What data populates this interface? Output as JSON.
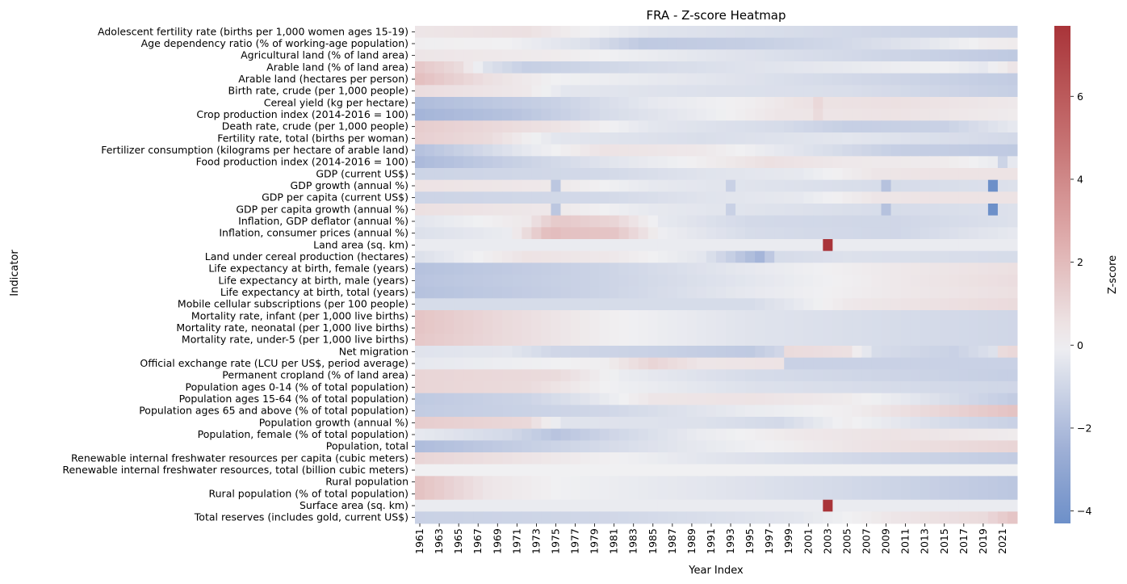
{
  "chart_data": {
    "type": "heatmap",
    "title": "FRA - Z-score Heatmap",
    "xlabel": "Year Index",
    "ylabel": "Indicator",
    "colorbar_label": "Z-score",
    "colormap": "vlag",
    "color_range": [
      -4.3,
      7.7
    ],
    "colorbar_ticks": [
      -4,
      -2,
      0,
      2,
      4,
      6
    ],
    "colorbar_tick_labels": [
      "−4",
      "−2",
      "0",
      "2",
      "4",
      "6"
    ],
    "x_start": 1961,
    "x_end": 2022,
    "xtick_labels": [
      "1961",
      "1963",
      "1965",
      "1967",
      "1969",
      "1971",
      "1973",
      "1975",
      "1977",
      "1979",
      "1981",
      "1983",
      "1985",
      "1987",
      "1989",
      "1991",
      "1993",
      "1995",
      "1997",
      "1999",
      "2001",
      "2003",
      "2005",
      "2007",
      "2009",
      "2011",
      "2013",
      "2015",
      "2017",
      "2019",
      "2021"
    ],
    "indicators": [
      "Adolescent fertility rate (births per 1,000 women ages 15-19)",
      "Age dependency ratio (% of working-age population)",
      "Agricultural land (% of land area)",
      "Arable land (% of land area)",
      "Arable land (hectares per person)",
      "Birth rate, crude (per 1,000 people)",
      "Cereal yield (kg per hectare)",
      "Crop production index (2014-2016 = 100)",
      "Death rate, crude (per 1,000 people)",
      "Fertility rate, total (births per woman)",
      "Fertilizer consumption (kilograms per hectare of arable land)",
      "Food production index (2014-2016 = 100)",
      "GDP (current US$)",
      "GDP growth (annual %)",
      "GDP per capita (current US$)",
      "GDP per capita growth (annual %)",
      "Inflation, GDP deflator (annual %)",
      "Inflation, consumer prices (annual %)",
      "Land area (sq. km)",
      "Land under cereal production (hectares)",
      "Life expectancy at birth, female (years)",
      "Life expectancy at birth, male (years)",
      "Life expectancy at birth, total (years)",
      "Mobile cellular subscriptions (per 100 people)",
      "Mortality rate, infant (per 1,000 live births)",
      "Mortality rate, neonatal (per 1,000 live births)",
      "Mortality rate, under-5 (per 1,000 live births)",
      "Net migration",
      "Official exchange rate (LCU per US$, period average)",
      "Permanent cropland (% of land area)",
      "Population ages 0-14 (% of total population)",
      "Population ages 15-64 (% of total population)",
      "Population ages 65 and above (% of total population)",
      "Population growth (annual %)",
      "Population, female (% of total population)",
      "Population, total",
      "Renewable internal freshwater resources per capita (cubic meters)",
      "Renewable internal freshwater resources, total (billion cubic meters)",
      "Rural population",
      "Rural population (% of total population)",
      "Surface area (sq. km)",
      "Total reserves (includes gold, current US$)"
    ],
    "anchors": [
      [
        [
          1961,
          0.4
        ],
        [
          1972,
          0.6
        ],
        [
          1976,
          0.2
        ],
        [
          1985,
          -0.5
        ],
        [
          2000,
          -0.8
        ],
        [
          2022,
          -1.3
        ]
      ],
      [
        [
          1961,
          0.1
        ],
        [
          1970,
          0.0
        ],
        [
          1978,
          -0.6
        ],
        [
          1984,
          -1.5
        ],
        [
          1995,
          -1.3
        ],
        [
          2005,
          -0.9
        ],
        [
          2013,
          -0.4
        ],
        [
          2019,
          0.1
        ],
        [
          2022,
          0.2
        ]
      ],
      [
        [
          1961,
          0.4
        ],
        [
          1975,
          0.2
        ],
        [
          1990,
          -0.4
        ],
        [
          2005,
          -0.9
        ],
        [
          2022,
          -1.5
        ]
      ],
      [
        [
          1961,
          1.5
        ],
        [
          1965,
          0.8
        ],
        [
          1968,
          -0.6
        ],
        [
          1972,
          -1.3
        ],
        [
          1985,
          -0.8
        ],
        [
          2000,
          -0.4
        ],
        [
          2015,
          0.0
        ],
        [
          2019,
          -0.3
        ],
        [
          2022,
          0.4
        ]
      ],
      [
        [
          1961,
          1.8
        ],
        [
          1968,
          0.6
        ],
        [
          1975,
          0.0
        ],
        [
          1990,
          -0.4
        ],
        [
          2005,
          -0.9
        ],
        [
          2022,
          -1.4
        ]
      ],
      [
        [
          1961,
          0.7
        ],
        [
          1972,
          0.3
        ],
        [
          1976,
          -0.4
        ],
        [
          1990,
          -0.6
        ],
        [
          2005,
          -0.7
        ],
        [
          2022,
          -1.3
        ]
      ],
      [
        [
          1961,
          -2.0
        ],
        [
          1975,
          -1.2
        ],
        [
          1985,
          -0.3
        ],
        [
          1995,
          0.1
        ],
        [
          2000,
          0.5
        ],
        [
          2010,
          0.6
        ],
        [
          2022,
          0.3
        ]
      ],
      [
        [
          1961,
          -2.3
        ],
        [
          1970,
          -1.8
        ],
        [
          1980,
          -0.8
        ],
        [
          1990,
          -0.2
        ],
        [
          1998,
          0.4
        ],
        [
          2010,
          0.5
        ],
        [
          2022,
          0.2
        ]
      ],
      [
        [
          1961,
          1.3
        ],
        [
          1975,
          0.5
        ],
        [
          1985,
          -0.4
        ],
        [
          1998,
          -0.8
        ],
        [
          2005,
          -1.3
        ],
        [
          2015,
          -1.2
        ],
        [
          2022,
          -0.3
        ]
      ],
      [
        [
          1961,
          1.2
        ],
        [
          1968,
          0.8
        ],
        [
          1975,
          -0.4
        ],
        [
          1990,
          -0.7
        ],
        [
          2005,
          -0.4
        ],
        [
          2022,
          -0.9
        ]
      ],
      [
        [
          1961,
          -1.8
        ],
        [
          1967,
          -1.0
        ],
        [
          1972,
          -0.3
        ],
        [
          1980,
          0.5
        ],
        [
          1990,
          0.3
        ],
        [
          1998,
          -0.3
        ],
        [
          2010,
          -1.3
        ],
        [
          2022,
          -1.5
        ]
      ],
      [
        [
          1961,
          -2.1
        ],
        [
          1970,
          -1.3
        ],
        [
          1980,
          -0.5
        ],
        [
          1990,
          0.1
        ],
        [
          1997,
          0.6
        ],
        [
          2005,
          0.3
        ],
        [
          2015,
          0.2
        ],
        [
          2022,
          -0.3
        ]
      ],
      [
        [
          1961,
          -1.1
        ],
        [
          1980,
          -0.9
        ],
        [
          1990,
          -0.5
        ],
        [
          2000,
          -0.3
        ],
        [
          2008,
          0.4
        ],
        [
          2015,
          0.5
        ],
        [
          2022,
          0.5
        ]
      ],
      [
        [
          1961,
          0.5
        ],
        [
          1975,
          0.3
        ],
        [
          1985,
          -0.3
        ],
        [
          2000,
          -0.6
        ],
        [
          2010,
          -0.8
        ],
        [
          2022,
          -0.6
        ]
      ],
      [
        [
          1961,
          -1.1
        ],
        [
          1980,
          -0.9
        ],
        [
          1990,
          -0.5
        ],
        [
          2000,
          -0.3
        ],
        [
          2008,
          0.4
        ],
        [
          2015,
          0.5
        ],
        [
          2022,
          0.5
        ]
      ],
      [
        [
          1961,
          0.6
        ],
        [
          1975,
          0.3
        ],
        [
          1985,
          -0.3
        ],
        [
          2000,
          -0.6
        ],
        [
          2010,
          -0.8
        ],
        [
          2022,
          -0.6
        ]
      ],
      [
        [
          1961,
          -0.4
        ],
        [
          1972,
          0.3
        ],
        [
          1975,
          1.5
        ],
        [
          1981,
          1.0
        ],
        [
          1986,
          -0.3
        ],
        [
          1995,
          -0.9
        ],
        [
          2010,
          -1.0
        ],
        [
          2022,
          -0.6
        ]
      ],
      [
        [
          1961,
          -0.6
        ],
        [
          1970,
          -0.2
        ],
        [
          1974,
          1.8
        ],
        [
          1981,
          1.6
        ],
        [
          1986,
          -0.1
        ],
        [
          1995,
          -0.8
        ],
        [
          2010,
          -1.0
        ],
        [
          2022,
          -0.3
        ]
      ],
      [
        [
          1961,
          -0.2
        ],
        [
          2022,
          -0.2
        ]
      ],
      [
        [
          1961,
          -0.6
        ],
        [
          1972,
          0.5
        ],
        [
          1981,
          0.3
        ],
        [
          1990,
          -0.4
        ],
        [
          1993,
          -1.3
        ],
        [
          1996,
          -2.3
        ],
        [
          1998,
          -0.8
        ],
        [
          2005,
          -0.6
        ],
        [
          2022,
          -0.8
        ]
      ],
      [
        [
          1961,
          -1.8
        ],
        [
          1980,
          -1.1
        ],
        [
          1995,
          -0.3
        ],
        [
          2010,
          0.3
        ],
        [
          2022,
          0.6
        ]
      ],
      [
        [
          1961,
          -1.7
        ],
        [
          1980,
          -1.1
        ],
        [
          1995,
          -0.4
        ],
        [
          2010,
          0.3
        ],
        [
          2022,
          0.7
        ]
      ],
      [
        [
          1961,
          -1.8
        ],
        [
          1980,
          -1.1
        ],
        [
          1995,
          -0.3
        ],
        [
          2010,
          0.3
        ],
        [
          2022,
          0.6
        ]
      ],
      [
        [
          1961,
          -0.8
        ],
        [
          1995,
          -0.8
        ],
        [
          1999,
          -0.4
        ],
        [
          2005,
          0.3
        ],
        [
          2012,
          0.5
        ],
        [
          2022,
          0.8
        ]
      ],
      [
        [
          1961,
          1.6
        ],
        [
          1970,
          0.8
        ],
        [
          1980,
          0.1
        ],
        [
          1995,
          -0.5
        ],
        [
          2010,
          -0.8
        ],
        [
          2022,
          -1.0
        ]
      ],
      [
        [
          1961,
          1.6
        ],
        [
          1970,
          0.8
        ],
        [
          1980,
          0.1
        ],
        [
          1995,
          -0.5
        ],
        [
          2010,
          -0.8
        ],
        [
          2022,
          -1.0
        ]
      ],
      [
        [
          1961,
          1.5
        ],
        [
          1970,
          0.8
        ],
        [
          1980,
          0.1
        ],
        [
          1995,
          -0.5
        ],
        [
          2010,
          -0.8
        ],
        [
          2022,
          -1.0
        ]
      ],
      [
        [
          1961,
          -0.5
        ],
        [
          1970,
          -0.4
        ],
        [
          1975,
          -1.0
        ],
        [
          1985,
          -1.2
        ],
        [
          1995,
          -1.5
        ],
        [
          1998,
          -1.0
        ],
        [
          1999,
          0.8
        ],
        [
          2005,
          0.6
        ],
        [
          2008,
          -0.8
        ],
        [
          2016,
          -1.2
        ],
        [
          2022,
          -0.3
        ]
      ],
      [
        [
          1961,
          -0.3
        ],
        [
          1980,
          0.1
        ],
        [
          1985,
          1.0
        ],
        [
          1990,
          0.4
        ],
        [
          1998,
          0.5
        ],
        [
          1999,
          -1.2
        ],
        [
          2022,
          -1.2
        ]
      ],
      [
        [
          1961,
          1.0
        ],
        [
          1975,
          0.8
        ],
        [
          1982,
          -0.2
        ],
        [
          1995,
          -0.8
        ],
        [
          2022,
          -1.3
        ]
      ],
      [
        [
          1961,
          1.0
        ],
        [
          1972,
          0.8
        ],
        [
          1980,
          0.0
        ],
        [
          1995,
          -0.6
        ],
        [
          2022,
          -1.0
        ]
      ],
      [
        [
          1961,
          -1.5
        ],
        [
          1972,
          -1.1
        ],
        [
          1978,
          -0.5
        ],
        [
          1985,
          0.4
        ],
        [
          1995,
          0.5
        ],
        [
          2005,
          0.2
        ],
        [
          2012,
          -0.4
        ],
        [
          2022,
          -1.4
        ]
      ],
      [
        [
          1961,
          -1.4
        ],
        [
          1980,
          -1.0
        ],
        [
          1995,
          -0.2
        ],
        [
          2005,
          0.1
        ],
        [
          2015,
          1.0
        ],
        [
          2022,
          1.7
        ]
      ],
      [
        [
          1961,
          1.3
        ],
        [
          1972,
          0.9
        ],
        [
          1976,
          -0.5
        ],
        [
          1990,
          -0.6
        ],
        [
          1998,
          -0.9
        ],
        [
          2005,
          0.1
        ],
        [
          2015,
          -0.8
        ],
        [
          2022,
          -1.2
        ]
      ],
      [
        [
          1961,
          -0.3
        ],
        [
          1970,
          -0.9
        ],
        [
          1975,
          -1.7
        ],
        [
          1981,
          -1.0
        ],
        [
          1990,
          -0.2
        ],
        [
          2000,
          0.3
        ],
        [
          2010,
          0.5
        ],
        [
          2022,
          0.2
        ]
      ],
      [
        [
          1961,
          -2.0
        ],
        [
          1975,
          -1.1
        ],
        [
          1990,
          -0.3
        ],
        [
          2005,
          0.4
        ],
        [
          2022,
          1.0
        ]
      ],
      [
        [
          1961,
          1.0
        ],
        [
          1975,
          0.3
        ],
        [
          1990,
          -0.4
        ],
        [
          2005,
          -0.9
        ],
        [
          2022,
          -1.4
        ]
      ],
      [
        [
          1961,
          0.0
        ],
        [
          2022,
          0.0
        ]
      ],
      [
        [
          1961,
          1.7
        ],
        [
          1968,
          0.4
        ],
        [
          1975,
          0.0
        ],
        [
          1990,
          -0.4
        ],
        [
          2005,
          -0.9
        ],
        [
          2022,
          -1.6
        ]
      ],
      [
        [
          1961,
          1.7
        ],
        [
          1968,
          0.4
        ],
        [
          1975,
          0.0
        ],
        [
          1990,
          -0.4
        ],
        [
          2005,
          -0.9
        ],
        [
          2022,
          -1.6
        ]
      ],
      [
        [
          1961,
          -0.2
        ],
        [
          2022,
          -0.2
        ]
      ],
      [
        [
          1961,
          -1.2
        ],
        [
          1980,
          -1.0
        ],
        [
          1990,
          -0.7
        ],
        [
          2000,
          -0.4
        ],
        [
          2010,
          0.4
        ],
        [
          2019,
          0.8
        ],
        [
          2022,
          1.6
        ]
      ]
    ],
    "points": [
      [
        13,
        2009,
        -1.8
      ],
      [
        13,
        2020,
        -4.3
      ],
      [
        13,
        1975,
        -1.6
      ],
      [
        13,
        1993,
        -1.2
      ],
      [
        15,
        2009,
        -1.8
      ],
      [
        15,
        2020,
        -4.3
      ],
      [
        15,
        1975,
        -1.6
      ],
      [
        15,
        1993,
        -1.2
      ],
      [
        18,
        2003,
        7.7
      ],
      [
        40,
        2003,
        7.7
      ],
      [
        11,
        2021,
        -1.1
      ],
      [
        27,
        2021,
        0.8
      ],
      [
        27,
        2022,
        0.9
      ],
      [
        16,
        1975,
        1.4
      ],
      [
        17,
        1975,
        1.9
      ],
      [
        6,
        2002,
        0.9
      ],
      [
        7,
        2002,
        0.8
      ]
    ]
  }
}
